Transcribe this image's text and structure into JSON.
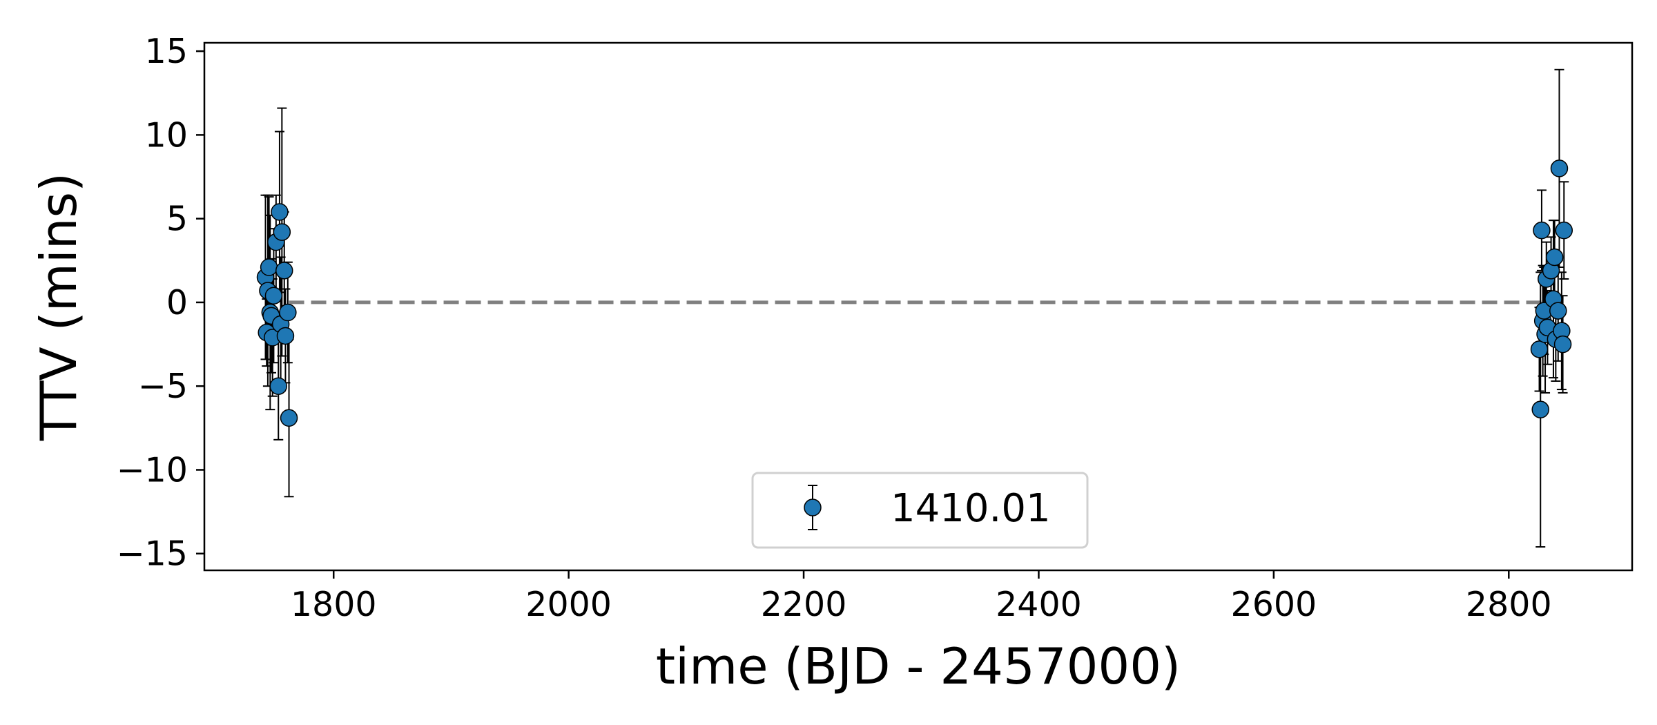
{
  "chart_data": {
    "type": "scatter",
    "xlabel": "time (BJD - 2457000)",
    "ylabel": "TTV (mins)",
    "xlim": [
      1690,
      2905
    ],
    "ylim": [
      -16,
      15.5
    ],
    "x_ticks": [
      1800,
      2000,
      2200,
      2400,
      2600,
      2800
    ],
    "y_ticks": [
      15,
      10,
      5,
      0,
      -5,
      -10,
      -15
    ],
    "y_tick_labels": [
      "15",
      "10",
      "5",
      "0",
      "−5",
      "−10",
      "−15"
    ],
    "reference_line": {
      "y": 0,
      "x_range": [
        1762,
        2830
      ],
      "style": "dashed",
      "color": "#808080"
    },
    "grid": false,
    "legend": {
      "position": "lower center",
      "entries": [
        "1410.01"
      ]
    },
    "marker_color": "#1f77b4",
    "series": [
      {
        "name": "1410.01",
        "points": [
          {
            "x": 1742,
            "y": 1.5,
            "err": 4.9
          },
          {
            "x": 1743,
            "y": -1.8,
            "err": 2.0
          },
          {
            "x": 1744,
            "y": 0.7,
            "err": 5.7
          },
          {
            "x": 1745,
            "y": 2.1,
            "err": 4.2
          },
          {
            "x": 1746,
            "y": -0.6,
            "err": 5.8
          },
          {
            "x": 1747,
            "y": -0.8,
            "err": 3.4
          },
          {
            "x": 1748,
            "y": -2.1,
            "err": 3.5
          },
          {
            "x": 1749,
            "y": 0.4,
            "err": 4.0
          },
          {
            "x": 1751,
            "y": 3.6,
            "err": 2.8
          },
          {
            "x": 1753,
            "y": -5.0,
            "err": 3.2
          },
          {
            "x": 1754,
            "y": 5.4,
            "err": 4.8
          },
          {
            "x": 1755,
            "y": -1.3,
            "err": 4.0
          },
          {
            "x": 1756,
            "y": 4.2,
            "err": 7.4
          },
          {
            "x": 1758,
            "y": 1.9,
            "err": 3.5
          },
          {
            "x": 1759,
            "y": -2.0,
            "err": 2.8
          },
          {
            "x": 1761,
            "y": -0.6,
            "err": 3.0
          },
          {
            "x": 1762,
            "y": -6.9,
            "err": 4.7
          },
          {
            "x": 2826,
            "y": -2.8,
            "err": 2.5
          },
          {
            "x": 2827,
            "y": -6.4,
            "err": 8.2
          },
          {
            "x": 2828,
            "y": 4.3,
            "err": 2.4
          },
          {
            "x": 2829,
            "y": -1.1,
            "err": 3.3
          },
          {
            "x": 2830,
            "y": -0.5,
            "err": 2.6
          },
          {
            "x": 2831,
            "y": -1.9,
            "err": 3.5
          },
          {
            "x": 2832,
            "y": 1.4,
            "err": 2.2
          },
          {
            "x": 2833,
            "y": -1.5,
            "err": 2.2
          },
          {
            "x": 2836,
            "y": 1.9,
            "err": 2.0
          },
          {
            "x": 2838,
            "y": 0.2,
            "err": 4.7
          },
          {
            "x": 2839,
            "y": 2.7,
            "err": 2.2
          },
          {
            "x": 2840,
            "y": -2.2,
            "err": 2.5
          },
          {
            "x": 2842,
            "y": -0.5,
            "err": 3.0
          },
          {
            "x": 2843,
            "y": 8.0,
            "err": 5.9
          },
          {
            "x": 2845,
            "y": -1.7,
            "err": 3.5
          },
          {
            "x": 2846,
            "y": -2.5,
            "err": 2.9
          },
          {
            "x": 2847,
            "y": 4.3,
            "err": 2.9
          }
        ]
      }
    ]
  }
}
